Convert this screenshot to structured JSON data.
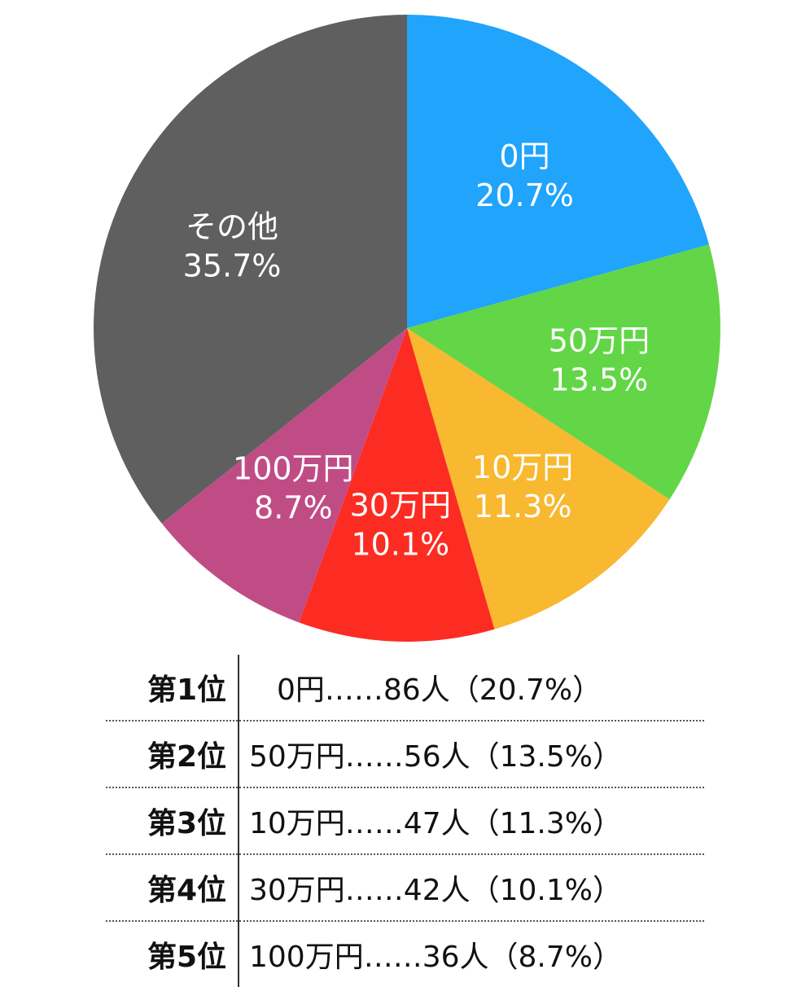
{
  "chart_data": {
    "type": "pie",
    "title": "",
    "start_angle_deg": 0,
    "direction": "clockwise",
    "slices": [
      {
        "label": "0円",
        "percent_text": "20.7%",
        "value": 20.7,
        "color": "#20a4fc"
      },
      {
        "label": "50万円",
        "percent_text": "13.5%",
        "value": 13.5,
        "color": "#62d647"
      },
      {
        "label": "10万円",
        "percent_text": "11.3%",
        "value": 11.3,
        "color": "#f8b82f"
      },
      {
        "label": "30万円",
        "percent_text": "10.1%",
        "value": 10.1,
        "color": "#fc2c22"
      },
      {
        "label": "100万円",
        "percent_text": "8.7%",
        "value": 8.7,
        "color": "#c04c86"
      },
      {
        "label": "その他",
        "percent_text": "35.7%",
        "value": 35.7,
        "color": "#5f5f5f"
      }
    ]
  },
  "ranking": [
    {
      "rank": "第1位",
      "text": "0円……86人（20.7%）"
    },
    {
      "rank": "第2位",
      "text": "50万円……56人（13.5%）"
    },
    {
      "rank": "第3位",
      "text": "10万円……47人（11.3%）"
    },
    {
      "rank": "第4位",
      "text": "30万円……42人（10.1%）"
    },
    {
      "rank": "第5位",
      "text": "100万円……36人（8.7%）"
    }
  ]
}
